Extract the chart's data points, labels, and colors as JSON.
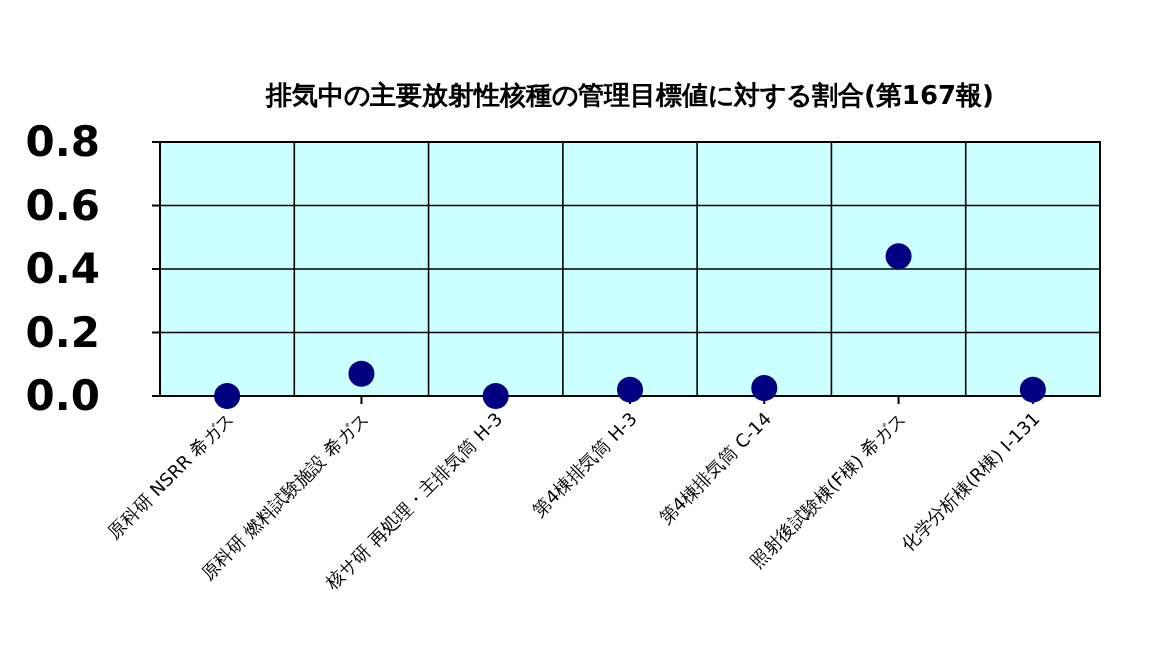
{
  "chart_data": {
    "type": "scatter",
    "title": "排気中の主要放射性核種の管理目標値に対する割合(第167報)",
    "categories": [
      "原科研 NSRR 希ガス",
      "原科研 燃料試験施設 希ガス",
      "核サ研 再処理・主排気筒 H-3",
      "第4棟排気筒 H-3",
      "第4棟排気筒 C-14",
      "照射後試験棟(F棟) 希ガス",
      "化学分析棟(R棟) I-131"
    ],
    "series": [
      {
        "color": "#000080",
        "values": [
          0.0,
          0.07,
          0.0,
          0.02,
          0.025,
          0.44,
          0.02
        ]
      }
    ],
    "ylim": [
      0,
      0.8
    ],
    "yticks": [
      {
        "value": 0,
        "label": "0.0"
      },
      {
        "value": 0.2,
        "label": "0.2"
      },
      {
        "value": 0.4,
        "label": "0.4"
      },
      {
        "value": 0.6,
        "label": "0.6"
      },
      {
        "value": 0.8,
        "label": "0.8"
      }
    ],
    "grid": true,
    "marker": "circle"
  }
}
